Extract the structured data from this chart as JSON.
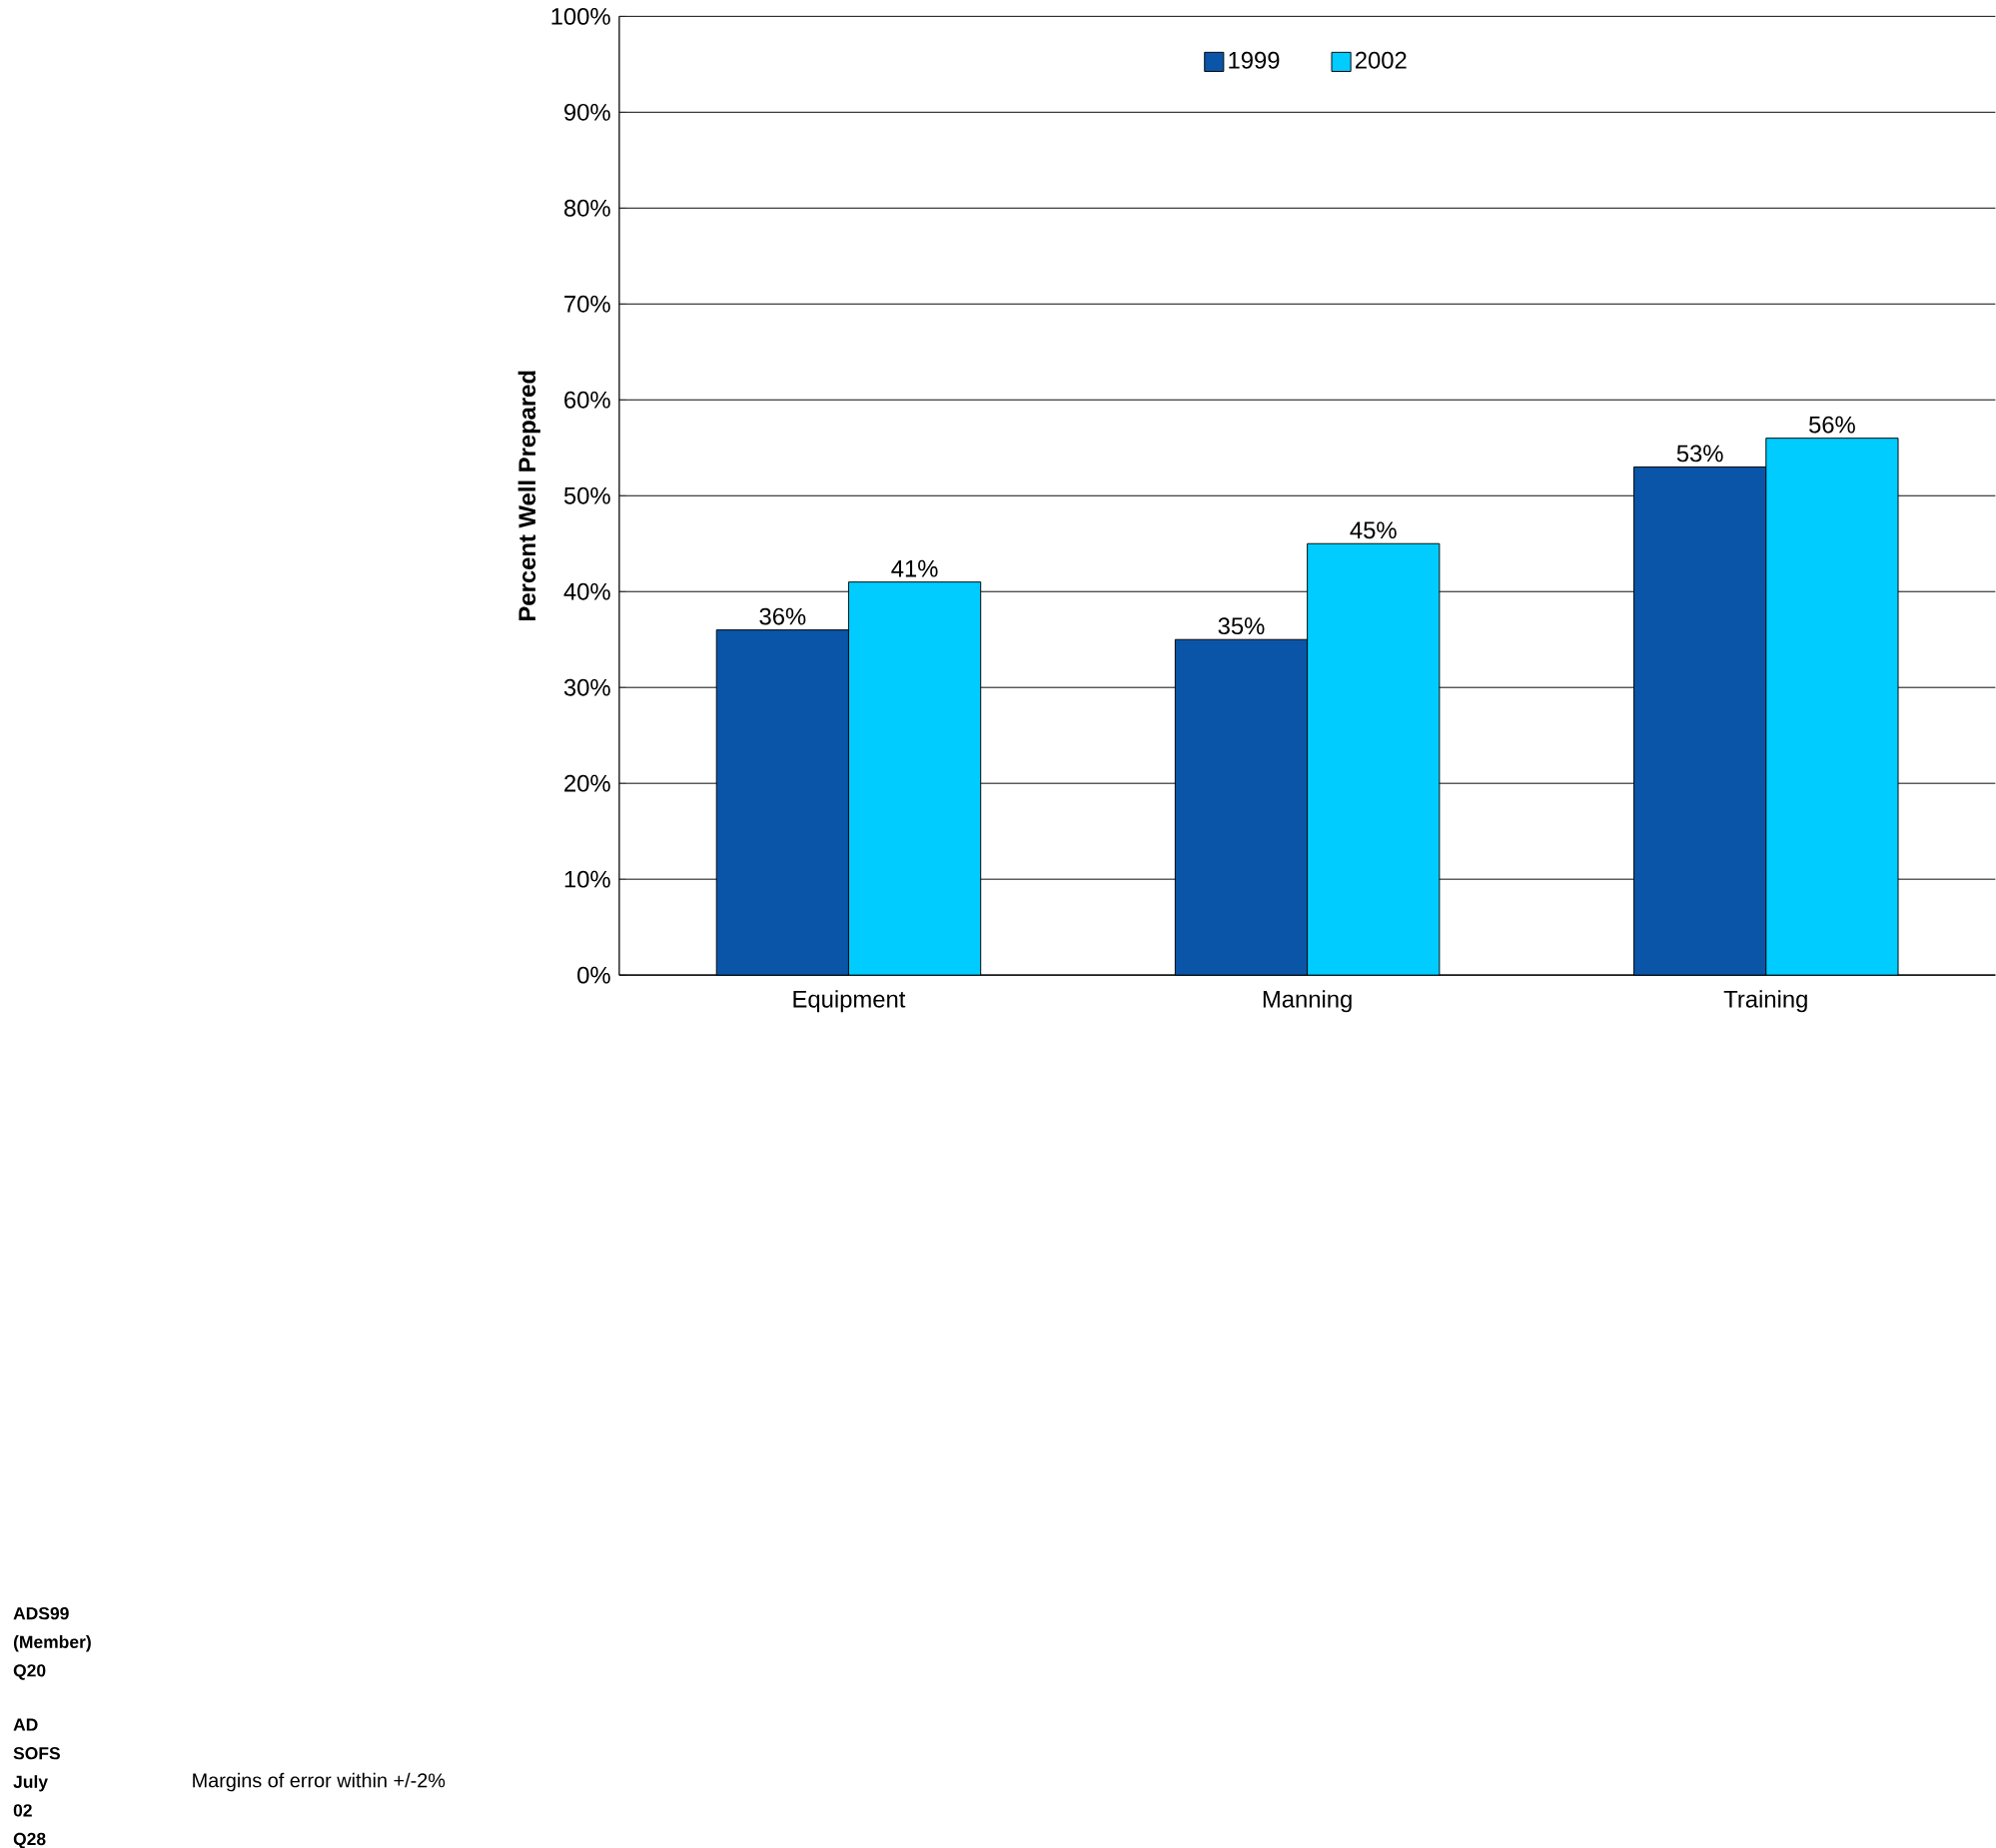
{
  "chart_data": {
    "type": "bar",
    "ylabel": "Percent Well Prepared",
    "categories": [
      "Equipment",
      "Manning",
      "Training"
    ],
    "series": [
      {
        "name": "1999",
        "color": "#0a55a8",
        "values": [
          36,
          35,
          53
        ],
        "value_labels": [
          "36%",
          "35%",
          "53%"
        ]
      },
      {
        "name": "2002",
        "color": "#00ccff",
        "values": [
          41,
          45,
          56
        ],
        "value_labels": [
          "41%",
          "45%",
          "56%"
        ]
      }
    ],
    "ylim": [
      0,
      100
    ],
    "yticks": [
      {
        "value": 0,
        "label": "0%"
      },
      {
        "value": 10,
        "label": "10%"
      },
      {
        "value": 20,
        "label": "20%"
      },
      {
        "value": 30,
        "label": "30%"
      },
      {
        "value": 40,
        "label": "40%"
      },
      {
        "value": 50,
        "label": "50%"
      },
      {
        "value": 60,
        "label": "60%"
      },
      {
        "value": 70,
        "label": "70%"
      },
      {
        "value": 80,
        "label": "80%"
      },
      {
        "value": 90,
        "label": "90%"
      },
      {
        "value": 100,
        "label": "100%"
      }
    ],
    "grid": "y",
    "legend": "top",
    "annotations": [
      "ADS99 (Member) Q20",
      "AD SOFS July 02 Q28",
      "Margins of error within +/-2%"
    ]
  }
}
